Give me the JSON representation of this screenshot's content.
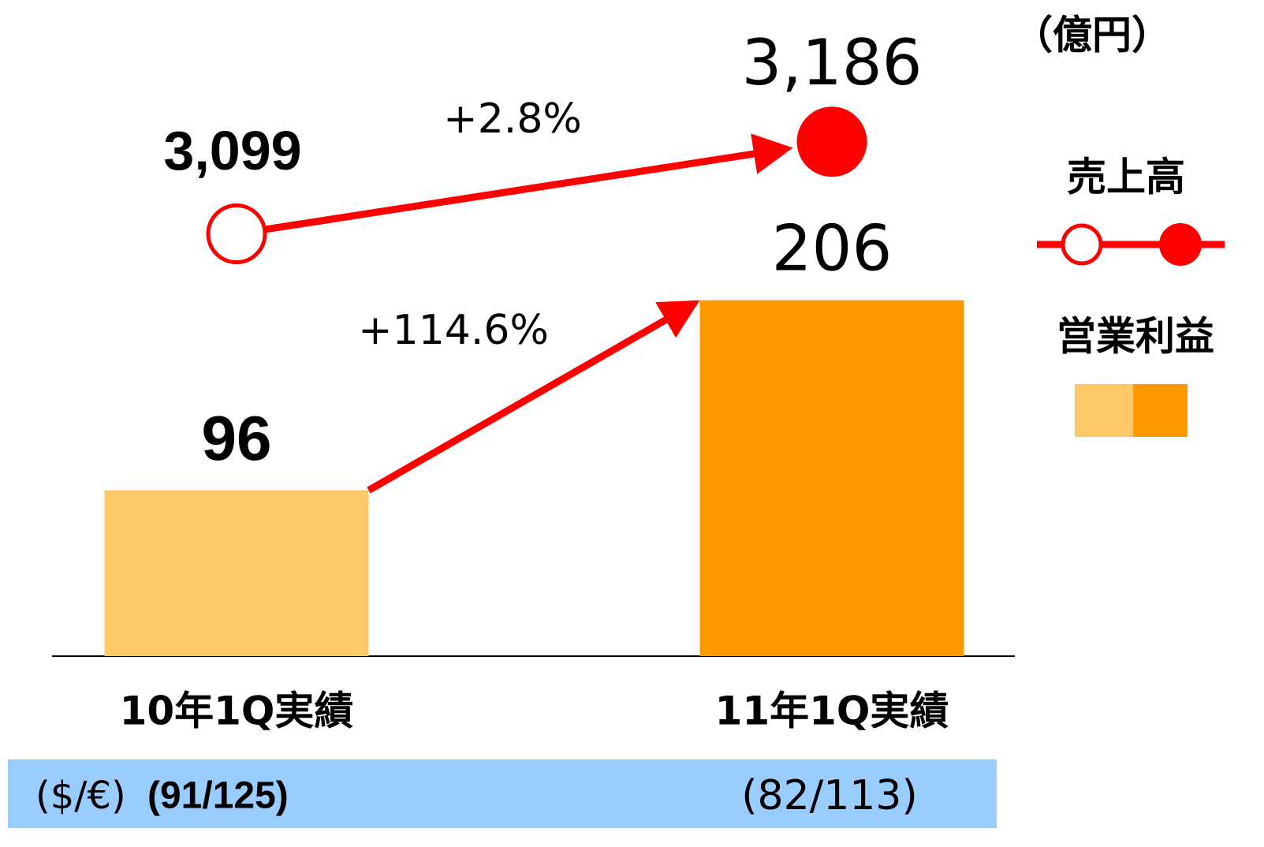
{
  "chart_data": {
    "type": "combo",
    "unit": "（億円）",
    "categories": [
      "10年1Q実績",
      "11年1Q実績"
    ],
    "series": [
      {
        "name": "売上高",
        "type": "line",
        "axis": "y2",
        "color": "#ff0000",
        "values": [
          3099,
          3186
        ],
        "value_labels": [
          "3,099",
          "3,186"
        ]
      },
      {
        "name": "営業利益",
        "type": "bar",
        "colors": [
          "#fdc865",
          "#ff9900"
        ],
        "values": [
          96,
          206
        ]
      }
    ],
    "ylim": [
      0,
      210
    ],
    "y2lim": [
      2700,
      3200
    ],
    "annotations": [
      "+2.8%",
      "+114.6%"
    ],
    "footer": {
      "label": "($/€)",
      "values": [
        "(91/125)",
        "(82/113)"
      ]
    }
  }
}
